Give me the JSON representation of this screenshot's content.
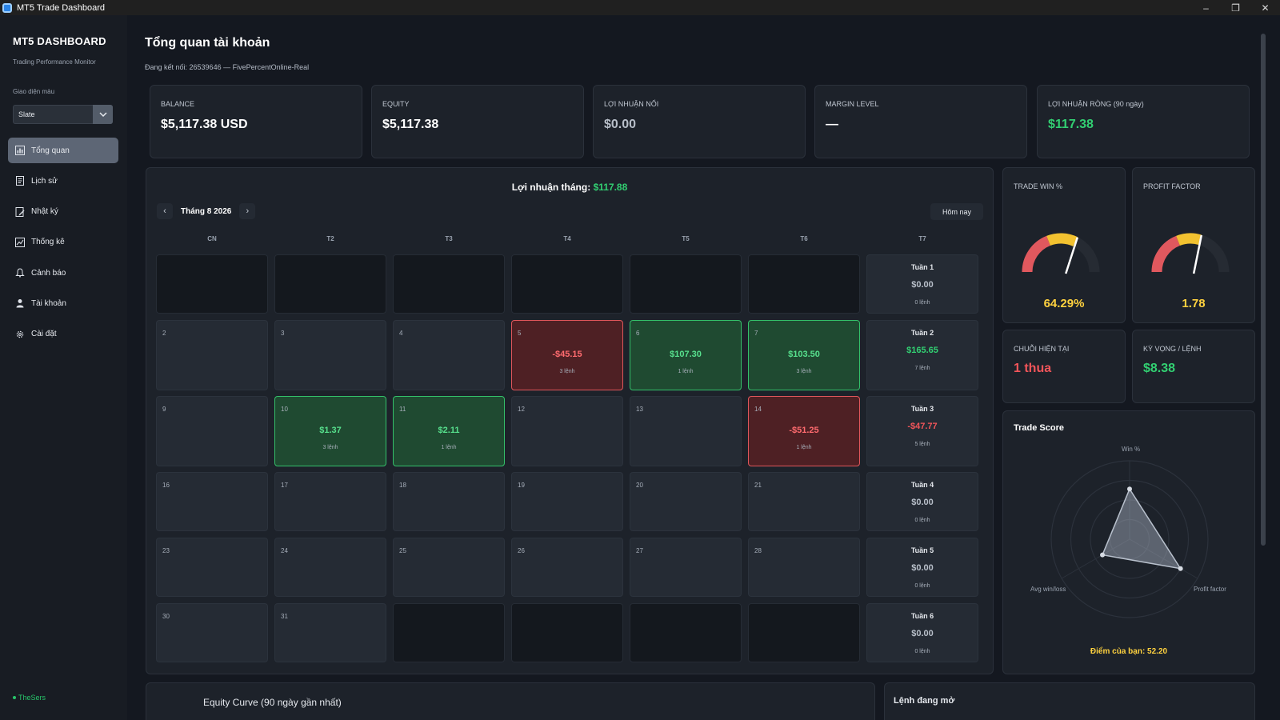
{
  "window": {
    "title": "MT5 Trade Dashboard",
    "controls": [
      "–",
      "❐",
      "✕"
    ]
  },
  "sidebar": {
    "brand": "MT5 DASHBOARD",
    "subtitle": "Trading Performance Monitor",
    "theme_label": "Giao diện màu",
    "theme_value": "Slate",
    "items": [
      {
        "label": "Tổng quan",
        "icon": "dashboard-icon",
        "active": true
      },
      {
        "label": "Lịch sử",
        "icon": "history-icon"
      },
      {
        "label": "Nhật ký",
        "icon": "journal-icon"
      },
      {
        "label": "Thống kê",
        "icon": "statistics-icon"
      },
      {
        "label": "Cảnh báo",
        "icon": "bell-icon"
      },
      {
        "label": "Tài khoản",
        "icon": "user-icon"
      },
      {
        "label": "Cài đặt",
        "icon": "gear-icon"
      }
    ],
    "footer_user": "TheSers"
  },
  "header": {
    "title": "Tổng quan tài khoản",
    "connection": "Đang kết nối: 26539646 — FivePercentOnline-Real"
  },
  "kpis": [
    {
      "label": "BALANCE",
      "value": "$5,117.38 USD",
      "tone": "white"
    },
    {
      "label": "EQUITY",
      "value": "$5,117.38",
      "tone": "white"
    },
    {
      "label": "LỢI NHUẬN NỔI",
      "value": "$0.00",
      "tone": "muted"
    },
    {
      "label": "MARGIN LEVEL",
      "value": "—",
      "tone": "white"
    },
    {
      "label": "LỢI NHUẬN RÒNG (90 ngày)",
      "value": "$117.38",
      "tone": "green"
    }
  ],
  "calendar": {
    "title_prefix": "Lợi nhuận tháng:",
    "title_value": "$117.88",
    "month": "Tháng 8 2026",
    "prev": "‹",
    "next": "›",
    "today_button": "Hôm nay",
    "weekdays": [
      "CN",
      "T2",
      "T3",
      "T4",
      "T5",
      "T6",
      "T7"
    ],
    "rows": [
      {
        "days": [
          {
            "n": "",
            "type": "empty"
          },
          {
            "n": "",
            "type": "empty"
          },
          {
            "n": "",
            "type": "empty"
          },
          {
            "n": "",
            "type": "empty"
          },
          {
            "n": "",
            "type": "empty"
          },
          {
            "n": "",
            "type": "empty"
          }
        ],
        "week": {
          "label": "Tuần 1",
          "value": "$0.00",
          "trades": "0 lệnh",
          "tone": "neutral"
        }
      },
      {
        "days": [
          {
            "n": "2",
            "type": "day"
          },
          {
            "n": "3",
            "type": "day"
          },
          {
            "n": "4",
            "type": "day"
          },
          {
            "n": "5",
            "type": "loss",
            "value": "-$45.15",
            "trades": "3 lệnh"
          },
          {
            "n": "6",
            "type": "win",
            "value": "$107.30",
            "trades": "1 lệnh"
          },
          {
            "n": "7",
            "type": "win",
            "value": "$103.50",
            "trades": "3 lệnh"
          }
        ],
        "week": {
          "label": "Tuần 2",
          "value": "$165.65",
          "trades": "7 lệnh",
          "tone": "green"
        }
      },
      {
        "days": [
          {
            "n": "9",
            "type": "day"
          },
          {
            "n": "10",
            "type": "win",
            "value": "$1.37",
            "trades": "3 lệnh"
          },
          {
            "n": "11",
            "type": "win",
            "value": "$2.11",
            "trades": "1 lệnh"
          },
          {
            "n": "12",
            "type": "day"
          },
          {
            "n": "13",
            "type": "day"
          },
          {
            "n": "14",
            "type": "loss",
            "value": "-$51.25",
            "trades": "1 lệnh"
          }
        ],
        "week": {
          "label": "Tuần 3",
          "value": "-$47.77",
          "trades": "5 lệnh",
          "tone": "red"
        }
      },
      {
        "days": [
          {
            "n": "16",
            "type": "day"
          },
          {
            "n": "17",
            "type": "day"
          },
          {
            "n": "18",
            "type": "day"
          },
          {
            "n": "19",
            "type": "day"
          },
          {
            "n": "20",
            "type": "day"
          },
          {
            "n": "21",
            "type": "day"
          }
        ],
        "week": {
          "label": "Tuần 4",
          "value": "$0.00",
          "trades": "0 lệnh",
          "tone": "neutral"
        }
      },
      {
        "days": [
          {
            "n": "23",
            "type": "day"
          },
          {
            "n": "24",
            "type": "day"
          },
          {
            "n": "25",
            "type": "day"
          },
          {
            "n": "26",
            "type": "day"
          },
          {
            "n": "27",
            "type": "day"
          },
          {
            "n": "28",
            "type": "day"
          }
        ],
        "week": {
          "label": "Tuần 5",
          "value": "$0.00",
          "trades": "0 lệnh",
          "tone": "neutral"
        }
      },
      {
        "days": [
          {
            "n": "30",
            "type": "day"
          },
          {
            "n": "31",
            "type": "day"
          },
          {
            "n": "",
            "type": "empty"
          },
          {
            "n": "",
            "type": "empty"
          },
          {
            "n": "",
            "type": "empty"
          },
          {
            "n": "",
            "type": "empty"
          }
        ],
        "week": {
          "label": "Tuần 6",
          "value": "$0.00",
          "trades": "0 lệnh",
          "tone": "neutral"
        }
      }
    ]
  },
  "stats": {
    "win_rate": {
      "label": "TRADE WIN %",
      "value": "64.29%",
      "fraction": 0.6429
    },
    "profit_factor": {
      "label": "PROFIT FACTOR",
      "value": "1.78",
      "fraction": 0.593
    },
    "streak": {
      "label": "CHUỖI HIỆN TẠI",
      "value": "1 thua"
    },
    "expectancy": {
      "label": "KỲ VỌNG / LỆNH",
      "value": "$8.38"
    }
  },
  "trade_score": {
    "title": "Trade Score",
    "axes": [
      "Win %",
      "Profit factor",
      "Avg win/loss"
    ],
    "axis_values": [
      0.64,
      0.75,
      0.4
    ],
    "score_text": "Điểm của bạn: 52.20"
  },
  "bottom": {
    "equity_title": "Equity Curve (90 ngày gần nhất)",
    "open_orders_title": "Lệnh đang mở"
  },
  "colors": {
    "green": "#32d072",
    "red": "#f2555a",
    "gold": "#ffd23f",
    "accent": "#5d6675"
  }
}
